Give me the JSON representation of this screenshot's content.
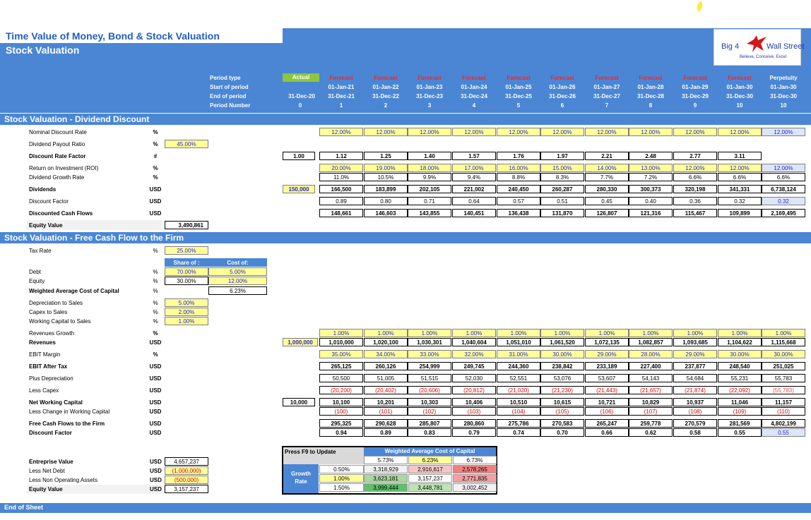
{
  "title": "Time Value of Money, Bond & Stock Valuation",
  "subtitle": "Stock Valuation",
  "logo": {
    "name": "Big 4",
    "name2": "Wall Street",
    "tagline": "Believe, Conceive, Excel"
  },
  "header_rows": {
    "labels": [
      "Period type",
      "Start of period",
      "End of period",
      "Period Number"
    ],
    "period_type": [
      "Actual",
      "Forecast",
      "Forecast",
      "Forecast",
      "Forecast",
      "Forecast",
      "Forecast",
      "Forecast",
      "Forecast",
      "Forecast",
      "Forecast",
      "Perpetuity"
    ],
    "start": [
      "",
      "01-Jan-21",
      "01-Jan-22",
      "01-Jan-23",
      "01-Jan-24",
      "01-Jan-25",
      "01-Jan-26",
      "01-Jan-27",
      "01-Jan-28",
      "01-Jan-29",
      "01-Jan-30",
      "01-Jan-30"
    ],
    "end": [
      "31-Dec-20",
      "31-Dec-21",
      "31-Dec-22",
      "31-Dec-23",
      "31-Dec-24",
      "31-Dec-25",
      "31-Dec-26",
      "31-Dec-27",
      "31-Dec-28",
      "31-Dec-29",
      "31-Dec-30",
      "31-Dec-30"
    ],
    "number": [
      "0",
      "1",
      "2",
      "3",
      "4",
      "5",
      "6",
      "7",
      "8",
      "9",
      "10",
      "10"
    ]
  },
  "section1": {
    "title": "Stock Valuation - Dividend Discount",
    "rows": [
      {
        "label": "Nominal Discount Rate",
        "bold": false,
        "unit": "%",
        "input": "",
        "actual": "",
        "vals": [
          "12.00%",
          "12.00%",
          "12.00%",
          "12.00%",
          "12.00%",
          "12.00%",
          "12.00%",
          "12.00%",
          "12.00%",
          "12.00%",
          "12.00%"
        ],
        "style": "yel"
      },
      {
        "label": "Dividend Payout Ratio",
        "bold": false,
        "unit": "%",
        "input": "45.00%",
        "actual": "",
        "vals": [],
        "style": ""
      },
      {
        "label": "Discount Rate Factor",
        "bold": true,
        "unit": "#",
        "input": "",
        "actual": "1.00",
        "vals": [
          "1.12",
          "1.25",
          "1.40",
          "1.57",
          "1.76",
          "1.97",
          "2.21",
          "2.48",
          "2.77",
          "3.11",
          ""
        ],
        "style": "wht"
      },
      {
        "label": "Return on Investment (ROI)",
        "bold": false,
        "unit": "%",
        "input": "",
        "actual": "",
        "vals": [
          "20.00%",
          "19.00%",
          "18.00%",
          "17.00%",
          "16.00%",
          "15.00%",
          "14.00%",
          "13.00%",
          "12.00%",
          "12.00%",
          "12.00%"
        ],
        "style": "yel"
      },
      {
        "label": "Dividend Growth Rate",
        "bold": false,
        "unit": "%",
        "input": "",
        "actual": "",
        "vals": [
          "11.0%",
          "10.5%",
          "9.9%",
          "9.4%",
          "8.8%",
          "8.3%",
          "7.7%",
          "7.2%",
          "6.6%",
          "6.6%",
          "6.6%"
        ],
        "style": "wht"
      },
      {
        "label": "Dividends",
        "bold": true,
        "unit": "USD",
        "input": "",
        "actual": "150,000",
        "vals": [
          "166,500",
          "183,899",
          "202,105",
          "221,002",
          "240,450",
          "260,287",
          "280,330",
          "300,373",
          "320,198",
          "341,331",
          "6,738,124"
        ],
        "style": "wht"
      },
      {
        "label": "Discount Factor",
        "bold": false,
        "unit": "USD",
        "input": "",
        "actual": "",
        "vals": [
          "0.89",
          "0.80",
          "0.71",
          "0.64",
          "0.57",
          "0.51",
          "0.45",
          "0.40",
          "0.36",
          "0.32",
          "0.32"
        ],
        "style": "wht"
      },
      {
        "label": "Discounted Cash Flows",
        "bold": true,
        "unit": "USD",
        "input": "",
        "actual": "",
        "vals": [
          "148,661",
          "146,603",
          "143,855",
          "140,451",
          "136,438",
          "131,870",
          "126,807",
          "121,316",
          "115,467",
          "109,899",
          "2,169,495"
        ],
        "style": "wht"
      }
    ],
    "equity_label": "Equity Value",
    "equity_value": "3,490,861"
  },
  "section2": {
    "title": "Stock Valuation - Free Cash Flow to the Firm",
    "tax_label": "Tax Rate",
    "tax_value": "25.00%",
    "share_header": "Share of :",
    "cost_header": "Cost of:",
    "debt_label": "Debt",
    "debt_share": "70.00%",
    "debt_cost": "5.00%",
    "equity_label": "Equity",
    "equity_share": "30.00%",
    "equity_cost": "12.00%",
    "wacc_label": "Weighted Average Cost of Capital",
    "wacc_value": "6.23%",
    "dep_label": "Depreciation to Sales",
    "dep_value": "5.00%",
    "capex_label": "Capex to Sales",
    "capex_value": "2.00%",
    "wc_label": "Working Capital to Sales",
    "wc_value": "1.00%",
    "rows": [
      {
        "label": "Revenues Growth",
        "bold": false,
        "unit": "%",
        "actual": "",
        "vals": [
          "1.00%",
          "1.00%",
          "1.00%",
          "1.00%",
          "1.00%",
          "1.00%",
          "1.00%",
          "1.00%",
          "1.00%",
          "1.00%",
          "1.00%"
        ],
        "style": "yel"
      },
      {
        "label": "Revenues",
        "bold": true,
        "unit": "USD",
        "actual": "1,000,000",
        "vals": [
          "1,010,000",
          "1,020,100",
          "1,030,301",
          "1,040,604",
          "1,051,010",
          "1,061,520",
          "1,072,135",
          "1,082,857",
          "1,093,685",
          "1,104,622",
          "1,115,668"
        ],
        "style": "wht"
      },
      {
        "label": "EBIT Margin",
        "bold": false,
        "unit": "%",
        "actual": "",
        "vals": [
          "35.00%",
          "34.00%",
          "33.00%",
          "32.00%",
          "31.00%",
          "30.00%",
          "29.00%",
          "28.00%",
          "29.00%",
          "30.00%",
          "30.00%"
        ],
        "style": "yel"
      },
      {
        "label": "EBIT After Tax",
        "bold": true,
        "unit": "USD",
        "actual": "",
        "vals": [
          "265,125",
          "260,126",
          "254,999",
          "249,745",
          "244,360",
          "238,842",
          "233,189",
          "227,400",
          "237,877",
          "248,540",
          "251,025"
        ],
        "style": "wht"
      },
      {
        "label": "Plus Depreciation",
        "bold": false,
        "unit": "USD",
        "actual": "",
        "vals": [
          "50,500",
          "51,005",
          "51,515",
          "52,030",
          "52,551",
          "53,076",
          "53,607",
          "54,143",
          "54,684",
          "55,231",
          "55,783"
        ],
        "style": "wht"
      },
      {
        "label": "Less Capex",
        "bold": false,
        "unit": "USD",
        "actual": "",
        "vals": [
          "(20,200)",
          "(20,402)",
          "(20,606)",
          "(20,812)",
          "(21,020)",
          "(21,230)",
          "(21,443)",
          "(21,657)",
          "(21,874)",
          "(22,092)",
          "(55,783)"
        ],
        "style": "wht",
        "red": true
      },
      {
        "label": "Net Working Capital",
        "bold": true,
        "unit": "USD",
        "actual": "10,000",
        "vals": [
          "10,100",
          "10,201",
          "10,303",
          "10,406",
          "10,510",
          "10,615",
          "10,721",
          "10,829",
          "10,937",
          "11,046",
          "11,157"
        ],
        "style": "wht"
      },
      {
        "label": "Less Change in Working Capital",
        "bold": false,
        "unit": "USD",
        "actual": "",
        "vals": [
          "(100)",
          "(101)",
          "(102)",
          "(103)",
          "(104)",
          "(105)",
          "(106)",
          "(107)",
          "(108)",
          "(109)",
          "(110)"
        ],
        "style": "wht",
        "red": true
      },
      {
        "label": "Free Cash Flows to the Firm",
        "bold": true,
        "unit": "USD",
        "actual": "",
        "vals": [
          "295,325",
          "290,628",
          "285,807",
          "280,860",
          "275,786",
          "270,583",
          "265,247",
          "259,778",
          "270,579",
          "281,569",
          "4,802,199"
        ],
        "style": "wht"
      },
      {
        "label": "Discount Factor",
        "bold": true,
        "unit": "USD",
        "actual": "",
        "vals": [
          "0.94",
          "0.89",
          "0.83",
          "0.79",
          "0.74",
          "0.70",
          "0.66",
          "0.62",
          "0.58",
          "0.55",
          "0.55"
        ],
        "style": "wht"
      }
    ],
    "summary": [
      {
        "label": "Entreprise Value",
        "unit": "USD",
        "value": "4,657,237",
        "red": false,
        "yellow": false
      },
      {
        "label": "Less Net Debt",
        "unit": "USD",
        "value": "(1,000,000)",
        "red": true,
        "yellow": true
      },
      {
        "label": "Less Non Operating Assets",
        "unit": "USD",
        "value": "(500,000)",
        "red": true,
        "yellow": true
      },
      {
        "label": "Equity Value",
        "unit": "USD",
        "value": "3,157,237",
        "red": false,
        "yellow": false
      }
    ]
  },
  "sensitivity": {
    "press_label": "Press F9 to Update",
    "col_header": "Weighted Average Cost of Capital",
    "row_header": "Growth Rate",
    "cols": [
      "5.73%",
      "6.23%",
      "6.73%"
    ],
    "rows": [
      {
        "g": "0.50%",
        "vals": [
          "3,318,929",
          "2,916,617",
          "2,578,265"
        ],
        "colors": [
          "#f2f2f2",
          "#f4c7c7",
          "#f08080"
        ]
      },
      {
        "g": "1.00%",
        "vals": [
          "3,623,181",
          "3,157,237",
          "2,771,835"
        ],
        "colors": [
          "#a9d8a0",
          "#ffffff",
          "#f4a0a0"
        ]
      },
      {
        "g": "1.50%",
        "vals": [
          "3,999,444",
          "3,448,781",
          "3,002,452"
        ],
        "colors": [
          "#5fbf6a",
          "#bfe3b8",
          "#f2f2f2"
        ]
      }
    ]
  },
  "footer": "End of Sheet",
  "colors": {
    "band": "#4a86d4",
    "title_blue": "#1f5fbf",
    "actual_green": "#8dc63f",
    "forecast_red": "#e00000"
  }
}
